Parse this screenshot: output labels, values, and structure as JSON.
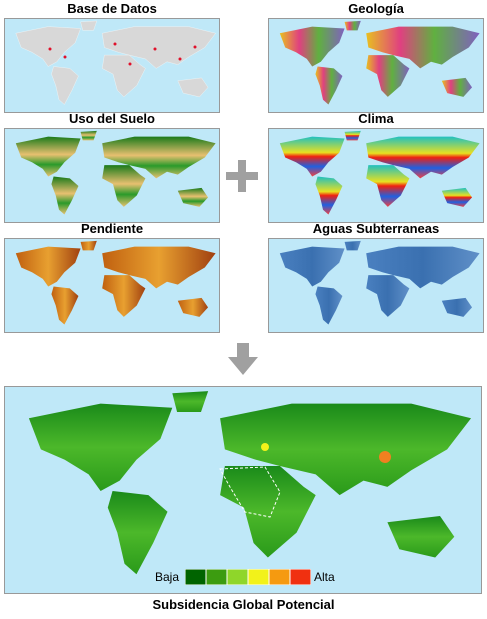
{
  "panels": [
    {
      "title": "Base de Datos"
    },
    {
      "title": "Geología"
    },
    {
      "title": "Uso del Suelo"
    },
    {
      "title": "Clima"
    },
    {
      "title": "Pendiente"
    },
    {
      "title": "Aguas Subterraneas"
    }
  ],
  "main_map": {
    "legend": {
      "low": "Baja",
      "high": "Alta",
      "colors": [
        "#006400",
        "#3c9c10",
        "#8fd62a",
        "#f2f21a",
        "#f59a10",
        "#f03010"
      ]
    },
    "caption": "Subsidencia Global Potencial"
  }
}
